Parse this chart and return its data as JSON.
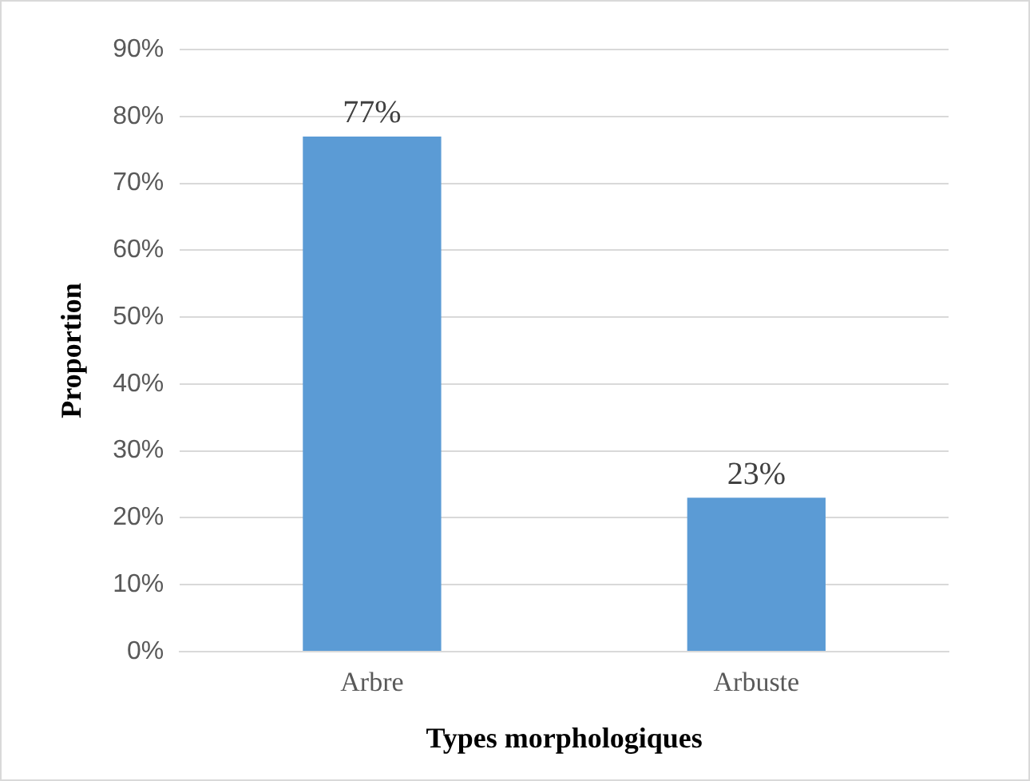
{
  "chart_data": {
    "type": "bar",
    "xlabel": "Types morphologiques",
    "ylabel": "Proportion",
    "categories": [
      "Arbre",
      "Arbuste"
    ],
    "values": [
      77,
      23
    ],
    "color": "#5b9bd5",
    "value_labels": [
      "77%",
      "23%"
    ],
    "ylim": [
      0,
      90
    ],
    "yticks": [
      {
        "value": 0,
        "label": "0%"
      },
      {
        "value": 10,
        "label": "10%"
      },
      {
        "value": 20,
        "label": "20%"
      },
      {
        "value": 30,
        "label": "30%"
      },
      {
        "value": 40,
        "label": "40%"
      },
      {
        "value": 50,
        "label": "50%"
      },
      {
        "value": 60,
        "label": "60%"
      },
      {
        "value": 70,
        "label": "70%"
      },
      {
        "value": 80,
        "label": "80%"
      },
      {
        "value": 90,
        "label": "90%"
      }
    ],
    "grid": "y"
  }
}
